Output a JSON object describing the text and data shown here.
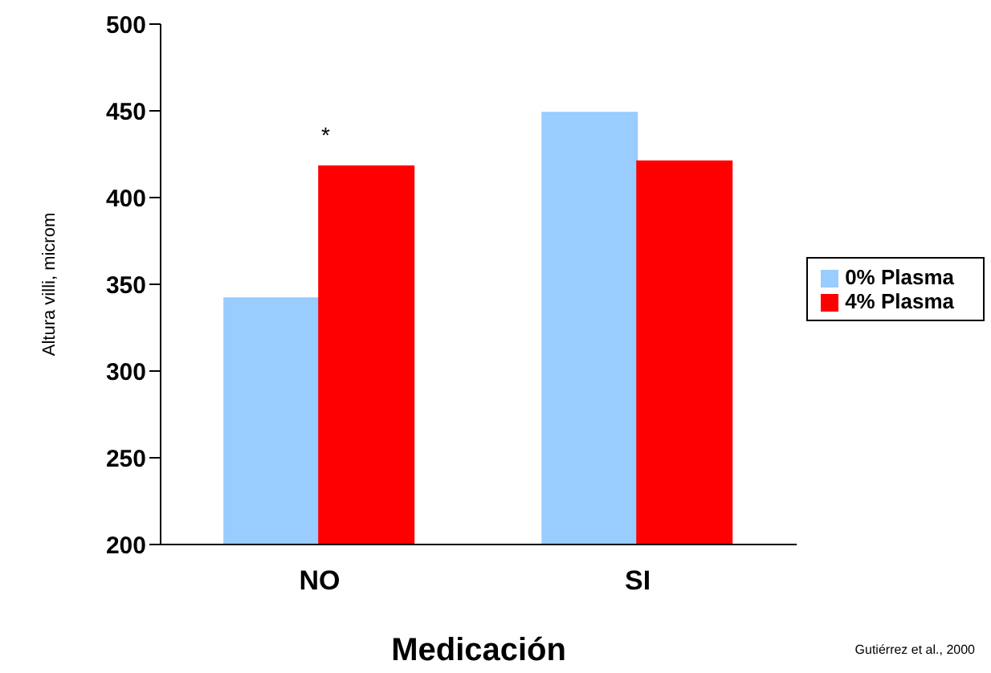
{
  "chart_data": {
    "type": "bar",
    "xlabel": "Medicación",
    "ylabel": "Altura villi, microm",
    "categories": [
      "NO",
      "SI"
    ],
    "series": [
      {
        "name": "0% Plasma",
        "color": "#99ccff",
        "values": [
          342,
          449
        ]
      },
      {
        "name": "4% Plasma",
        "color": "#ff0000",
        "values": [
          418,
          421
        ]
      }
    ],
    "ylim": [
      200,
      500
    ],
    "yticks": [
      200,
      250,
      300,
      350,
      400,
      450,
      500
    ],
    "grid": false,
    "legend": "right",
    "annotations": [
      "*",
      "Gutiérrez et al., 2000"
    ]
  }
}
